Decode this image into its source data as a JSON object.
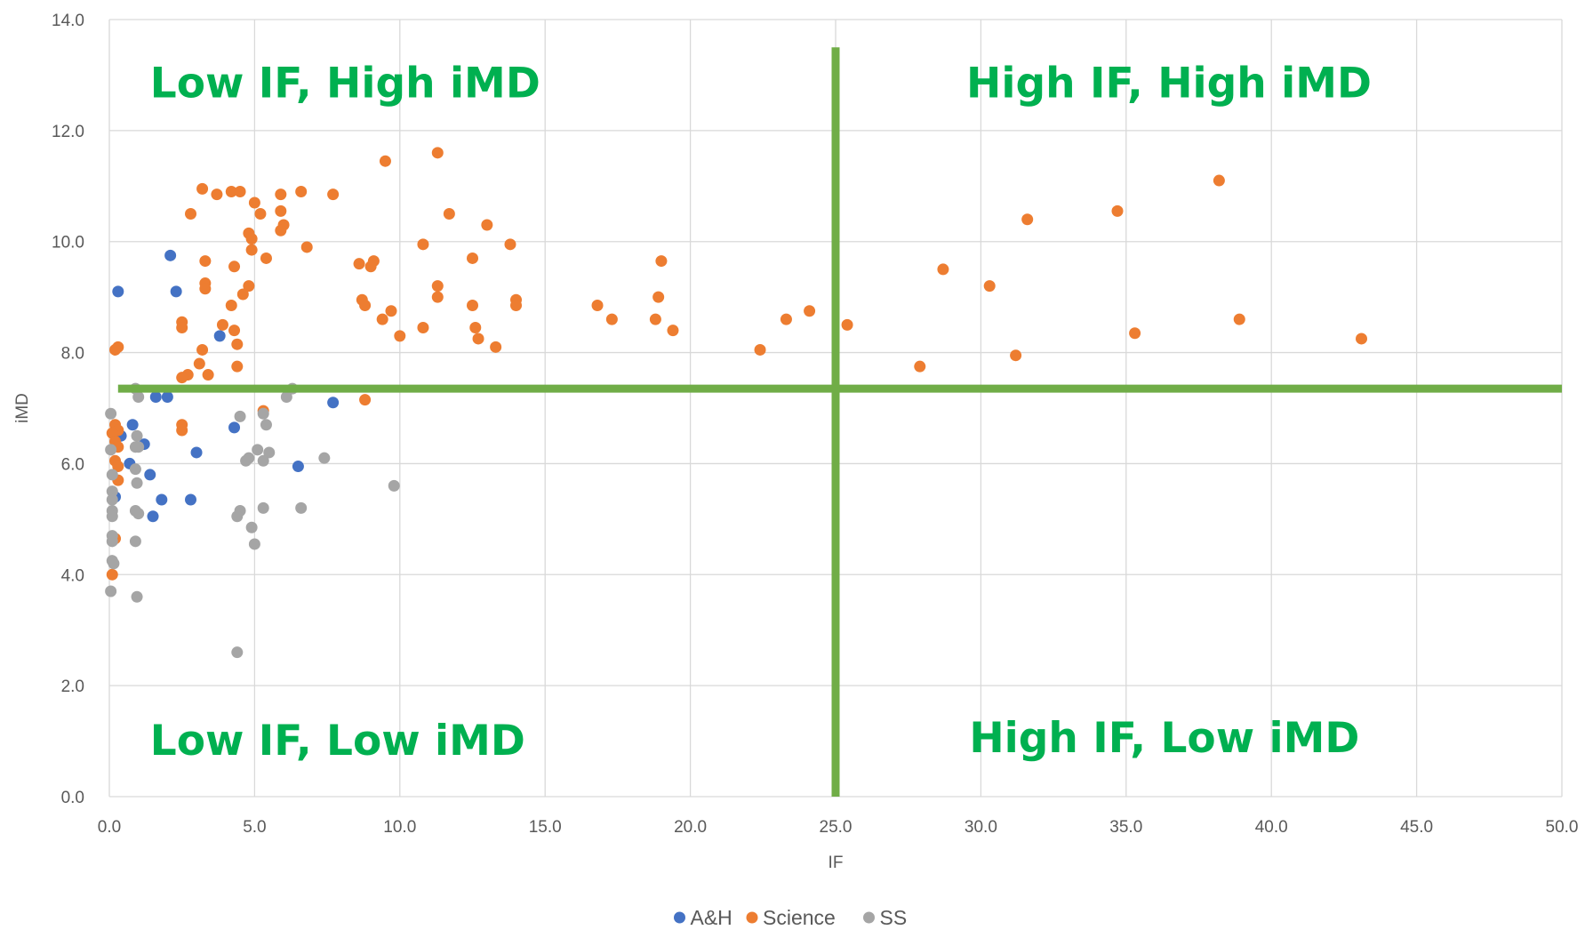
{
  "chart_data": {
    "type": "scatter",
    "xlabel": "IF",
    "ylabel": "iMD",
    "xlim": [
      0,
      50
    ],
    "ylim": [
      0,
      14
    ],
    "x_ticks": [
      "0.0",
      "5.0",
      "10.0",
      "15.0",
      "20.0",
      "25.0",
      "30.0",
      "35.0",
      "40.0",
      "45.0",
      "50.0"
    ],
    "y_ticks": [
      "0.0",
      "2.0",
      "4.0",
      "6.0",
      "8.0",
      "10.0",
      "12.0",
      "14.0"
    ],
    "grid": true,
    "legend_position": "bottom",
    "quadrant_lines": {
      "x": 25,
      "y": 7.35,
      "y_line_span": [
        0.3,
        50
      ],
      "x_line_span": [
        0,
        13.5
      ],
      "color": "#70ad47"
    },
    "quadrant_labels": [
      {
        "text": "Low IF, High iMD",
        "x": 1.4,
        "y": 12.6
      },
      {
        "text": "High IF, High iMD",
        "x": 29.5,
        "y": 12.6
      },
      {
        "text": "Low IF, Low iMD",
        "x": 1.4,
        "y": 0.75
      },
      {
        "text": "High IF, Low iMD",
        "x": 29.6,
        "y": 0.8
      }
    ],
    "series": [
      {
        "name": "A&H",
        "color": "#4472c4",
        "points": [
          [
            0.3,
            9.1
          ],
          [
            2.1,
            9.75
          ],
          [
            2.3,
            9.1
          ],
          [
            3.8,
            8.3
          ],
          [
            1.6,
            7.2
          ],
          [
            2.0,
            7.2
          ],
          [
            7.7,
            7.1
          ],
          [
            0.8,
            6.7
          ],
          [
            0.4,
            6.5
          ],
          [
            1.2,
            6.35
          ],
          [
            3.0,
            6.2
          ],
          [
            4.3,
            6.65
          ],
          [
            0.7,
            6.0
          ],
          [
            1.4,
            5.8
          ],
          [
            6.5,
            5.95
          ],
          [
            0.2,
            5.4
          ],
          [
            1.8,
            5.35
          ],
          [
            2.8,
            5.35
          ],
          [
            1.5,
            5.05
          ]
        ]
      },
      {
        "name": "Science",
        "color": "#ed7d31",
        "points": [
          [
            3.2,
            10.95
          ],
          [
            3.7,
            10.85
          ],
          [
            4.2,
            10.9
          ],
          [
            4.5,
            10.9
          ],
          [
            5.0,
            10.7
          ],
          [
            5.9,
            10.85
          ],
          [
            6.6,
            10.9
          ],
          [
            7.7,
            10.85
          ],
          [
            2.8,
            10.5
          ],
          [
            5.2,
            10.5
          ],
          [
            5.9,
            10.55
          ],
          [
            6.0,
            10.3
          ],
          [
            5.9,
            10.2
          ],
          [
            4.8,
            10.15
          ],
          [
            4.9,
            10.05
          ],
          [
            4.9,
            9.85
          ],
          [
            6.8,
            9.9
          ],
          [
            5.4,
            9.7
          ],
          [
            3.3,
            9.65
          ],
          [
            4.3,
            9.55
          ],
          [
            3.3,
            9.25
          ],
          [
            3.3,
            9.15
          ],
          [
            4.8,
            9.2
          ],
          [
            4.6,
            9.05
          ],
          [
            4.2,
            8.85
          ],
          [
            3.9,
            8.5
          ],
          [
            2.5,
            8.55
          ],
          [
            2.5,
            8.45
          ],
          [
            4.3,
            8.4
          ],
          [
            4.4,
            8.15
          ],
          [
            3.2,
            8.05
          ],
          [
            0.3,
            8.1
          ],
          [
            0.2,
            8.05
          ],
          [
            3.1,
            7.8
          ],
          [
            4.4,
            7.75
          ],
          [
            3.4,
            7.6
          ],
          [
            2.7,
            7.6
          ],
          [
            2.5,
            7.55
          ],
          [
            9.5,
            11.45
          ],
          [
            11.3,
            11.6
          ],
          [
            11.7,
            10.5
          ],
          [
            13.0,
            10.3
          ],
          [
            10.8,
            9.95
          ],
          [
            13.8,
            9.95
          ],
          [
            9.1,
            9.65
          ],
          [
            8.6,
            9.6
          ],
          [
            9.0,
            9.55
          ],
          [
            12.5,
            9.7
          ],
          [
            11.3,
            9.2
          ],
          [
            11.3,
            9.0
          ],
          [
            8.7,
            8.95
          ],
          [
            8.8,
            8.85
          ],
          [
            9.7,
            8.75
          ],
          [
            9.4,
            8.6
          ],
          [
            12.5,
            8.85
          ],
          [
            14.0,
            8.95
          ],
          [
            14.0,
            8.85
          ],
          [
            12.6,
            8.45
          ],
          [
            10.8,
            8.45
          ],
          [
            10.0,
            8.3
          ],
          [
            12.7,
            8.25
          ],
          [
            13.3,
            8.1
          ],
          [
            16.8,
            8.85
          ],
          [
            17.3,
            8.6
          ],
          [
            18.9,
            9.0
          ],
          [
            19.0,
            9.65
          ],
          [
            18.8,
            8.6
          ],
          [
            19.4,
            8.4
          ],
          [
            22.4,
            8.05
          ],
          [
            23.3,
            8.6
          ],
          [
            24.1,
            8.75
          ],
          [
            25.4,
            8.5
          ],
          [
            27.9,
            7.75
          ],
          [
            28.7,
            9.5
          ],
          [
            30.3,
            9.2
          ],
          [
            31.2,
            7.95
          ],
          [
            31.6,
            10.4
          ],
          [
            34.7,
            10.55
          ],
          [
            35.3,
            8.35
          ],
          [
            38.2,
            11.1
          ],
          [
            38.9,
            8.6
          ],
          [
            43.1,
            8.25
          ],
          [
            8.8,
            7.15
          ],
          [
            5.3,
            6.95
          ],
          [
            2.5,
            6.7
          ],
          [
            2.5,
            6.6
          ],
          [
            0.2,
            6.7
          ],
          [
            0.3,
            6.6
          ],
          [
            0.1,
            6.55
          ],
          [
            0.2,
            6.4
          ],
          [
            0.3,
            6.3
          ],
          [
            0.2,
            6.05
          ],
          [
            0.3,
            5.95
          ],
          [
            0.3,
            5.7
          ],
          [
            0.2,
            4.65
          ],
          [
            0.1,
            4.0
          ]
        ]
      },
      {
        "name": "SS",
        "color": "#a5a5a5",
        "points": [
          [
            0.9,
            7.35
          ],
          [
            6.3,
            7.35
          ],
          [
            6.1,
            7.2
          ],
          [
            1.0,
            7.2
          ],
          [
            0.05,
            6.9
          ],
          [
            5.3,
            6.9
          ],
          [
            4.5,
            6.85
          ],
          [
            5.4,
            6.7
          ],
          [
            0.95,
            6.5
          ],
          [
            0.9,
            6.3
          ],
          [
            1.0,
            6.3
          ],
          [
            0.05,
            6.25
          ],
          [
            5.1,
            6.25
          ],
          [
            5.5,
            6.2
          ],
          [
            4.8,
            6.1
          ],
          [
            4.7,
            6.05
          ],
          [
            5.3,
            6.05
          ],
          [
            7.4,
            6.1
          ],
          [
            0.9,
            5.9
          ],
          [
            0.1,
            5.8
          ],
          [
            0.95,
            5.65
          ],
          [
            9.8,
            5.6
          ],
          [
            0.1,
            5.5
          ],
          [
            0.1,
            5.35
          ],
          [
            5.3,
            5.2
          ],
          [
            6.6,
            5.2
          ],
          [
            4.5,
            5.15
          ],
          [
            0.1,
            5.15
          ],
          [
            0.9,
            5.15
          ],
          [
            1.0,
            5.1
          ],
          [
            4.4,
            5.05
          ],
          [
            0.1,
            5.05
          ],
          [
            4.9,
            4.85
          ],
          [
            0.1,
            4.7
          ],
          [
            0.9,
            4.6
          ],
          [
            0.1,
            4.6
          ],
          [
            5.0,
            4.55
          ],
          [
            0.1,
            4.25
          ],
          [
            0.15,
            4.2
          ],
          [
            0.05,
            3.7
          ],
          [
            0.95,
            3.6
          ],
          [
            4.4,
            2.6
          ]
        ]
      }
    ]
  }
}
